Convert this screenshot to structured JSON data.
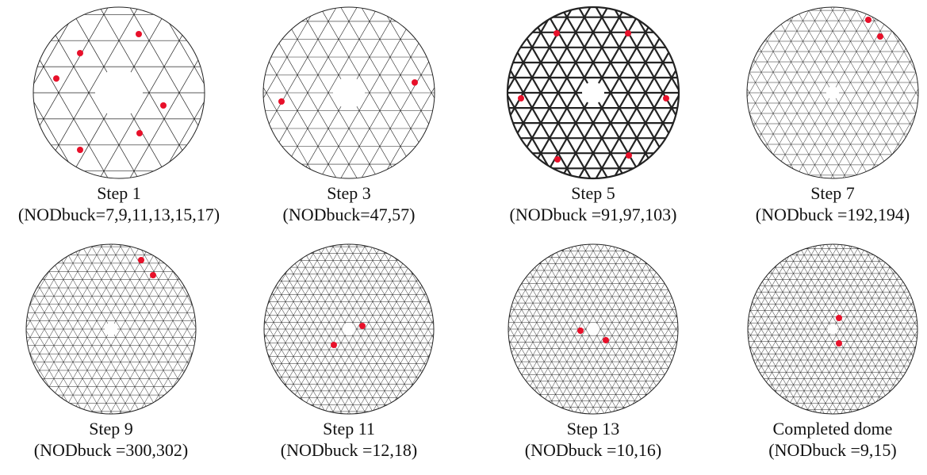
{
  "panels": [
    {
      "title": "Step 1",
      "caption": "(NODbuck=7,9,11,13,15,17)"
    },
    {
      "title": "Step 3",
      "caption": "(NODbuck=47,57)"
    },
    {
      "title": "Step 5",
      "caption": "(NODbuck =91,97,103)"
    },
    {
      "title": "Step 7",
      "caption": "(NODbuck =192,194)"
    },
    {
      "title": "Step 9",
      "caption": "(NODbuck =300,302)"
    },
    {
      "title": "Step 11",
      "caption": "(NODbuck =12,18)"
    },
    {
      "title": "Step 13",
      "caption": "(NODbuck =10,16)"
    },
    {
      "title": "Completed dome",
      "caption": "(NODbuck =9,15)"
    }
  ]
}
